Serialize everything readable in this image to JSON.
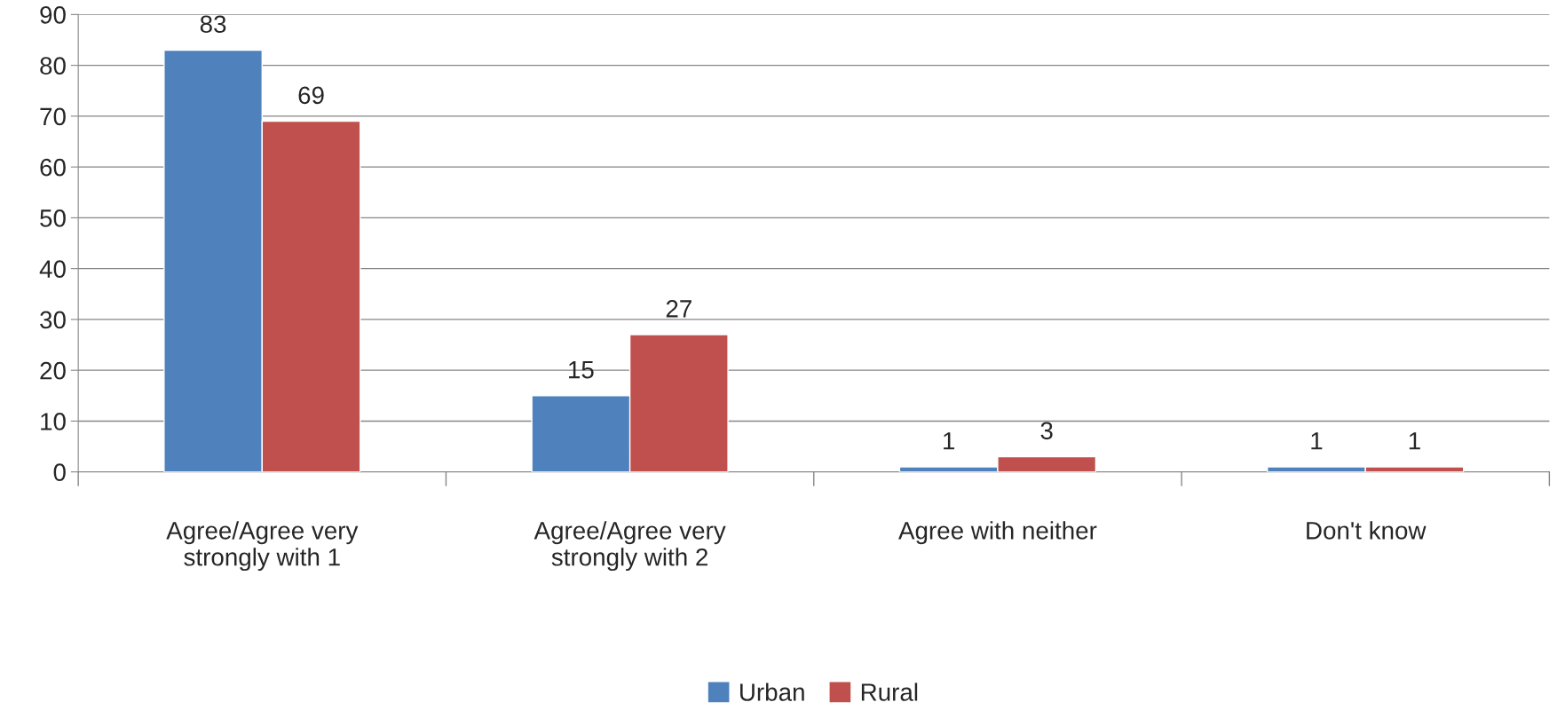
{
  "chart_data": {
    "type": "bar",
    "categories": [
      "Agree/Agree very\nstrongly with 1",
      "Agree/Agree very\nstrongly with 2",
      "Agree with neither",
      "Don't know"
    ],
    "series": [
      {
        "name": "Urban",
        "color": "#4f81bd",
        "values": [
          83,
          15,
          1,
          1
        ]
      },
      {
        "name": "Rural",
        "color": "#c0504d",
        "values": [
          69,
          27,
          3,
          1
        ]
      }
    ],
    "ylim": [
      0,
      90
    ],
    "yticks": [
      0,
      10,
      20,
      30,
      40,
      50,
      60,
      70,
      80,
      90
    ],
    "grid": "y",
    "legend": "bottom",
    "data_labels": true
  }
}
